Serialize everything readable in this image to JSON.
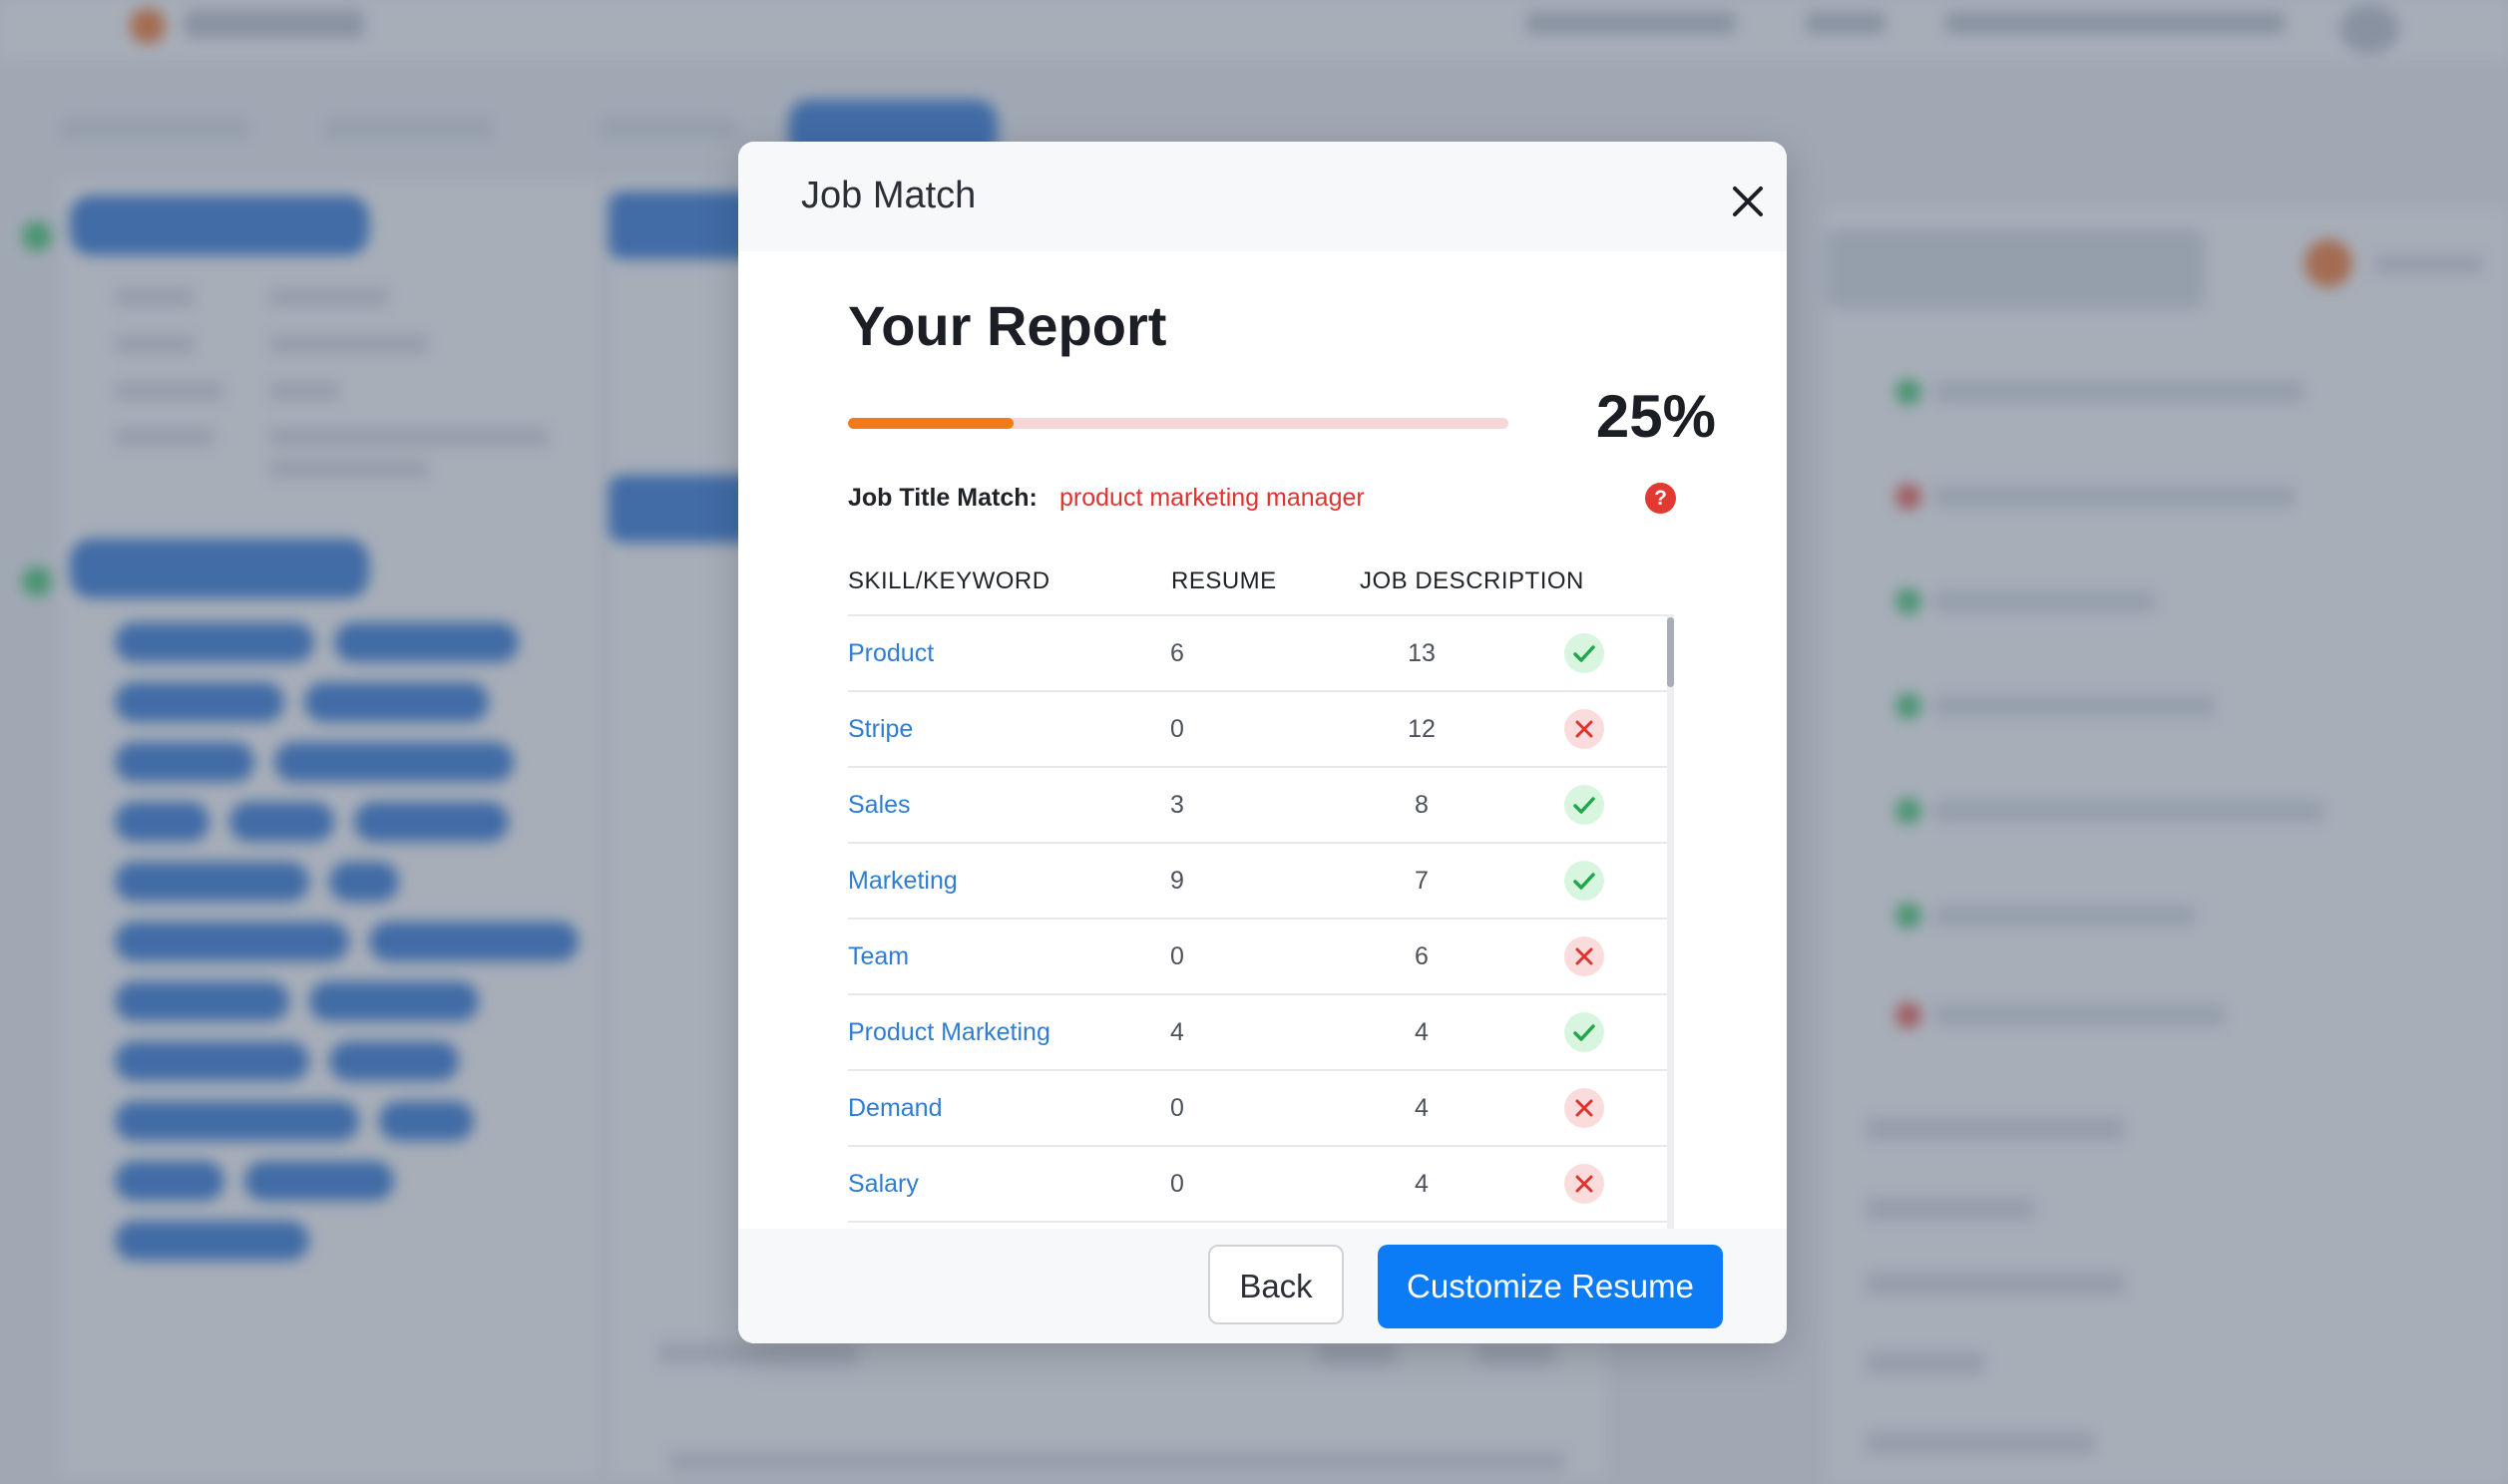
{
  "modal": {
    "title": "Job Match",
    "close_icon": "close-icon"
  },
  "report": {
    "title": "Your Report",
    "progress_percent": 25,
    "progress_label": "25%",
    "job_title_label": "Job Title Match:",
    "job_title_value": "product marketing manager",
    "help_icon": "question-icon",
    "help_glyph": "?"
  },
  "table": {
    "headers": {
      "skill": "SKILL/KEYWORD",
      "resume": "RESUME",
      "job_description": "JOB DESCRIPTION"
    },
    "rows": [
      {
        "skill": "Product",
        "resume": "6",
        "jd": "13",
        "status": "match"
      },
      {
        "skill": "Stripe",
        "resume": "0",
        "jd": "12",
        "status": "miss"
      },
      {
        "skill": "Sales",
        "resume": "3",
        "jd": "8",
        "status": "match"
      },
      {
        "skill": "Marketing",
        "resume": "9",
        "jd": "7",
        "status": "match"
      },
      {
        "skill": "Team",
        "resume": "0",
        "jd": "6",
        "status": "miss"
      },
      {
        "skill": "Product Marketing",
        "resume": "4",
        "jd": "4",
        "status": "match"
      },
      {
        "skill": "Demand",
        "resume": "0",
        "jd": "4",
        "status": "miss"
      },
      {
        "skill": "Salary",
        "resume": "0",
        "jd": "4",
        "status": "miss"
      }
    ]
  },
  "footer": {
    "back_label": "Back",
    "customize_label": "Customize Resume"
  },
  "colors": {
    "accent_blue": "#0b7cf5",
    "progress_orange": "#f27a1a",
    "match_green": "#1fa84a",
    "miss_red": "#e0322f"
  }
}
